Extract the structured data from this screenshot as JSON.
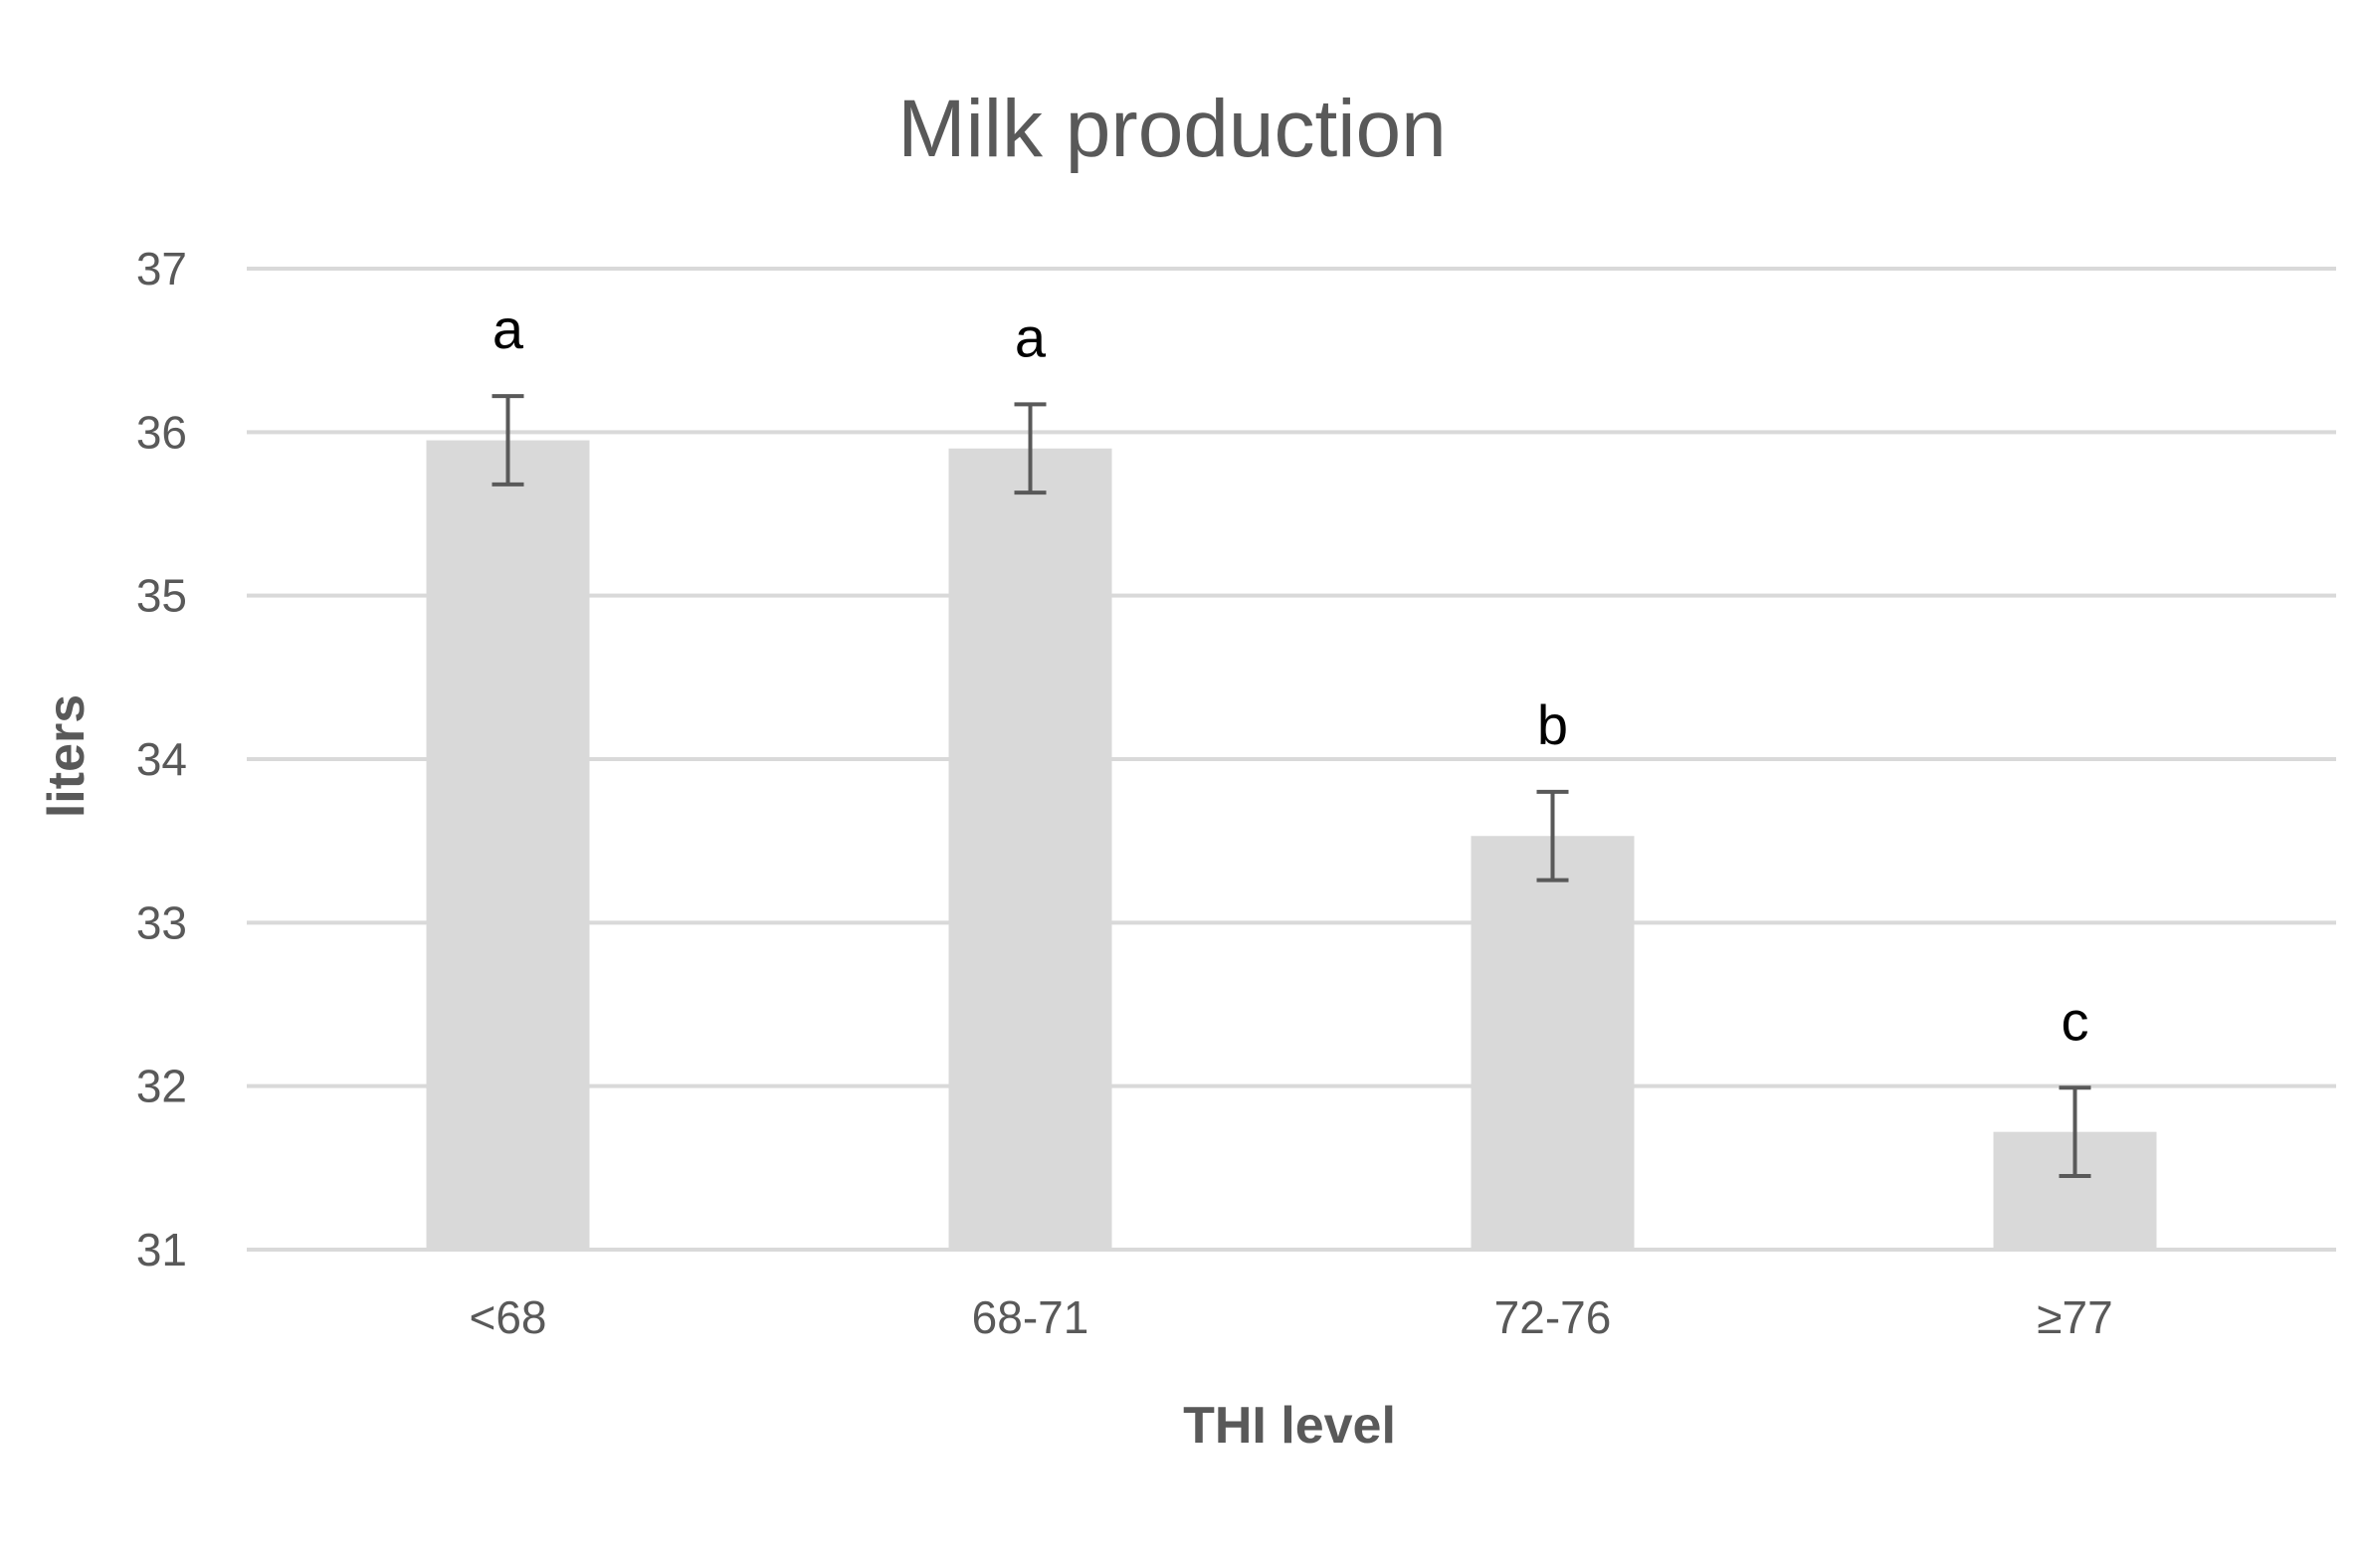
{
  "chart_data": {
    "type": "bar",
    "title": "Milk production",
    "xlabel": "THI level",
    "ylabel": "liters",
    "categories": [
      "<68",
      "68-71",
      "72-76",
      "≥77"
    ],
    "values": [
      35.95,
      35.9,
      33.53,
      31.72
    ],
    "error": [
      0.27,
      0.27,
      0.27,
      0.27
    ],
    "significance_labels": [
      "a",
      "a",
      "b",
      "c"
    ],
    "ylim": [
      31,
      37
    ],
    "yticks": [
      31,
      32,
      33,
      34,
      35,
      36,
      37
    ],
    "grid": true,
    "legend": "none",
    "colors": {
      "bar": "#d9d9d9",
      "grid": "#d9d9d9",
      "error_bar": "#595959",
      "text": "#595959"
    }
  }
}
